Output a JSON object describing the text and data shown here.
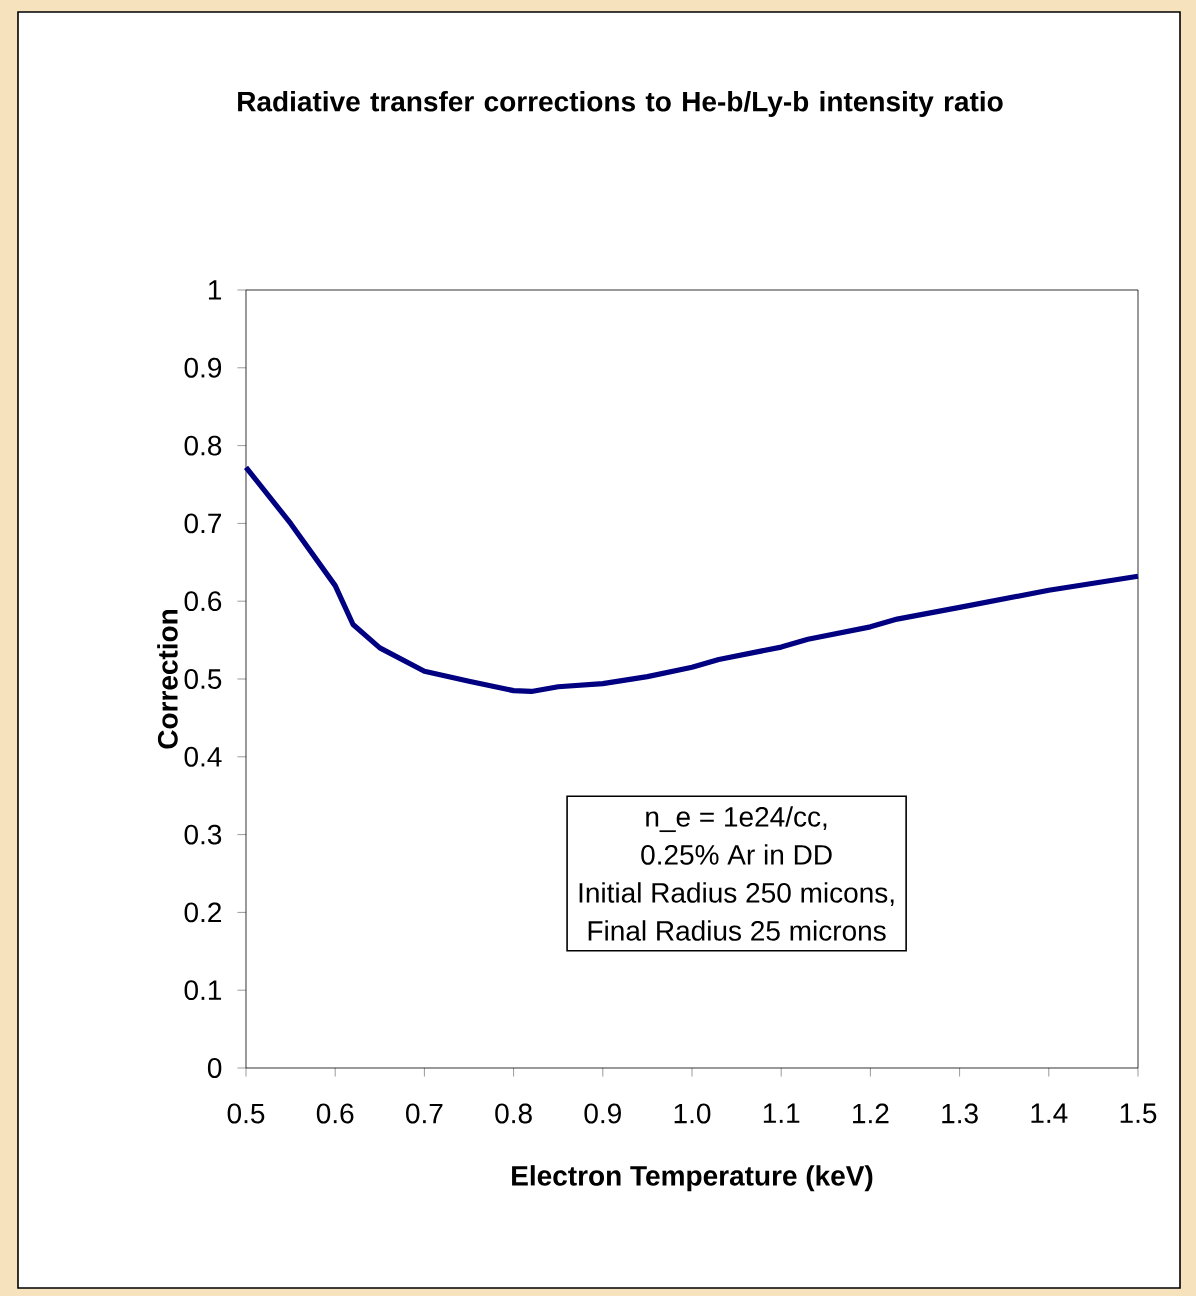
{
  "chart_data": {
    "type": "line",
    "title": "Radiative transfer corrections to He-b/Ly-b intensity ratio",
    "xlabel": "Electron Temperature (keV)",
    "ylabel": "Correction",
    "annotations": [
      "n_e = 1e24/cc,",
      "0.25% Ar in DD",
      "Initial Radius 250 micons,",
      "Final Radius 25 microns"
    ],
    "series": [
      {
        "color": "#000080",
        "x": [
          0.5,
          0.55,
          0.6,
          0.62,
          0.65,
          0.7,
          0.75,
          0.8,
          0.82,
          0.85,
          0.9,
          0.95,
          1.0,
          1.03,
          1.1,
          1.13,
          1.2,
          1.23,
          1.3,
          1.4,
          1.5
        ],
        "values": [
          0.772,
          0.7,
          0.62,
          0.57,
          0.54,
          0.51,
          0.497,
          0.485,
          0.484,
          0.49,
          0.494,
          0.503,
          0.515,
          0.525,
          0.541,
          0.551,
          0.567,
          0.577,
          0.592,
          0.614,
          0.632
        ]
      }
    ],
    "xlim": [
      0.5,
      1.5
    ],
    "ylim": [
      0,
      1
    ],
    "xticks": [
      0.5,
      0.6,
      0.7,
      0.8,
      0.9,
      {
        "value": 1,
        "label": "1.0"
      },
      1.1,
      1.2,
      1.3,
      1.4,
      1.5
    ],
    "yticks": [
      0,
      0.1,
      0.2,
      0.3,
      0.4,
      0.5,
      0.6,
      0.7,
      0.8,
      0.9,
      1
    ],
    "grid": false,
    "marker": "none",
    "line_style": "solid"
  }
}
